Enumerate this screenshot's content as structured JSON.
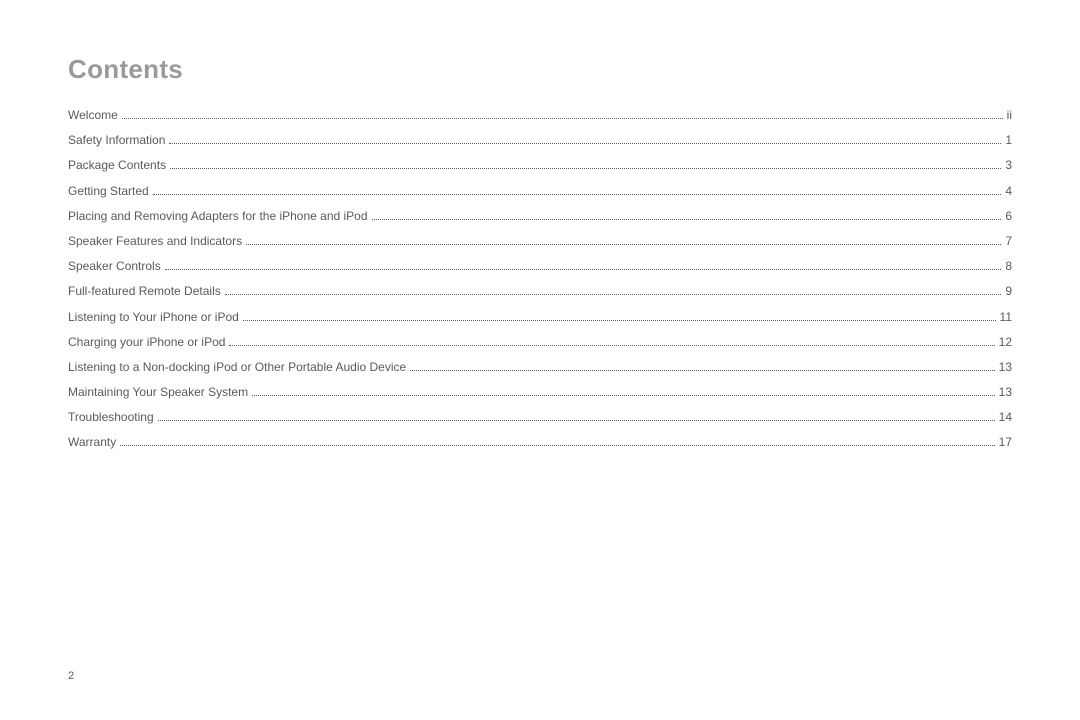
{
  "title": "Contents",
  "page_number": "2",
  "toc": [
    {
      "label": "Welcome",
      "page": "ii"
    },
    {
      "label": "Safety Information",
      "page": "1"
    },
    {
      "label": "Package Contents",
      "page": "3"
    },
    {
      "label": "Getting Started",
      "page": "4"
    },
    {
      "label": "Placing and Removing Adapters for the iPhone and iPod",
      "page": "6"
    },
    {
      "label": "Speaker Features and Indicators",
      "page": "7"
    },
    {
      "label": "Speaker Controls",
      "page": "8"
    },
    {
      "label": "Full-featured Remote Details",
      "page": "9"
    },
    {
      "label": "Listening to Your iPhone or iPod",
      "page": "11"
    },
    {
      "label": "Charging your iPhone or iPod",
      "page": "12"
    },
    {
      "label": "Listening to a Non-docking iPod or Other Portable Audio Device",
      "page": "13"
    },
    {
      "label": "Maintaining Your Speaker System",
      "page": "13"
    },
    {
      "label": "Troubleshooting",
      "page": "14"
    },
    {
      "label": "Warranty",
      "page": "17"
    }
  ],
  "style": {
    "background_color": "#ffffff",
    "title_color": "#9a9a9a",
    "text_color": "#5a5a5a",
    "title_fontsize": 26,
    "body_fontsize": 12,
    "pagefoot_fontsize": 11
  }
}
